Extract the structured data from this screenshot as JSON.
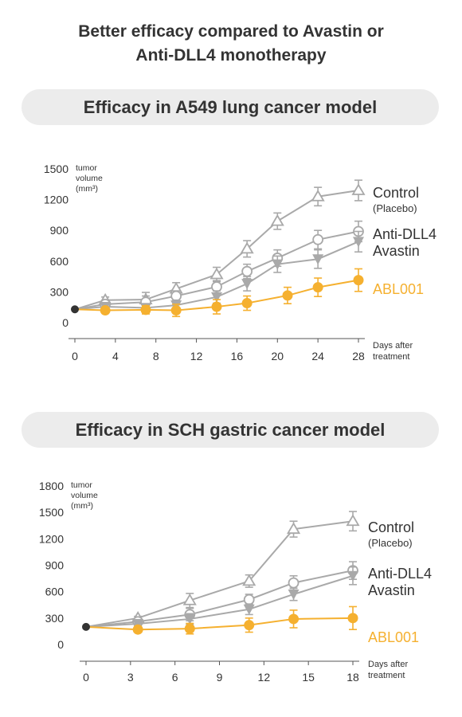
{
  "headline": {
    "line1": "Better efficacy compared to Avastin or",
    "line2": "Anti-DLL4 monotherapy"
  },
  "colors": {
    "gray": "#a9a9a9",
    "orange": "#f5b02f",
    "start": "#333333",
    "text": "#333333"
  },
  "chart_data": [
    {
      "type": "line",
      "title": "Efficacy in A549 lung cancer model",
      "ylabel_lines": [
        "tumor",
        "volume",
        "(mm³)"
      ],
      "xlabel_lines": [
        "Days after",
        "treatment"
      ],
      "yticks": [
        0,
        300,
        600,
        900,
        1200,
        1500
      ],
      "xticks": [
        0,
        4,
        8,
        12,
        16,
        20,
        24,
        28
      ],
      "xlim": [
        0,
        28
      ],
      "ylim": [
        0,
        1500
      ],
      "baseline": {
        "x": 0,
        "y": 130
      },
      "series": [
        {
          "name": "Control",
          "sublabel": "(Placebo)",
          "marker": "triangle-open",
          "color": "#a9a9a9",
          "x": [
            3,
            7,
            10,
            14,
            17,
            20,
            24,
            28
          ],
          "y": [
            220,
            225,
            330,
            470,
            720,
            990,
            1230,
            1290
          ],
          "err": [
            30,
            70,
            60,
            70,
            80,
            80,
            90,
            100
          ]
        },
        {
          "name": "Anti-DLL4",
          "marker": "circle-open",
          "color": "#a9a9a9",
          "x": [
            3,
            7,
            10,
            14,
            17,
            20,
            24,
            28
          ],
          "y": [
            180,
            200,
            260,
            350,
            500,
            630,
            810,
            890
          ],
          "err": [
            30,
            60,
            50,
            60,
            70,
            80,
            90,
            100
          ]
        },
        {
          "name": "Avastin",
          "marker": "triangle-down-filled",
          "color": "#a9a9a9",
          "x": [
            3,
            7,
            10,
            14,
            17,
            20,
            24,
            28
          ],
          "y": [
            155,
            145,
            170,
            250,
            380,
            570,
            620,
            790
          ],
          "err": [
            25,
            40,
            50,
            60,
            70,
            80,
            90,
            100
          ]
        },
        {
          "name": "ABL001",
          "marker": "circle-filled",
          "color": "#f5b02f",
          "x": [
            3,
            7,
            10,
            14,
            17,
            21,
            24,
            28
          ],
          "y": [
            120,
            125,
            120,
            155,
            190,
            265,
            345,
            415
          ],
          "err": [
            25,
            40,
            60,
            70,
            70,
            80,
            90,
            110
          ]
        }
      ]
    },
    {
      "type": "line",
      "title": "Efficacy in SCH gastric cancer model",
      "ylabel_lines": [
        "tumor",
        "volume",
        "(mm³)"
      ],
      "xlabel_lines": [
        "Days after",
        "treatment"
      ],
      "yticks": [
        0,
        300,
        600,
        900,
        1200,
        1500,
        1800
      ],
      "xticks": [
        0,
        3,
        6,
        9,
        12,
        15,
        18
      ],
      "xlim": [
        0,
        18
      ],
      "ylim": [
        0,
        1800
      ],
      "baseline": {
        "x": 0,
        "y": 200
      },
      "series": [
        {
          "name": "Control",
          "sublabel": "(Placebo)",
          "marker": "triangle-open",
          "color": "#a9a9a9",
          "x": [
            3.5,
            7,
            11,
            14,
            18
          ],
          "y": [
            300,
            500,
            720,
            1310,
            1400
          ],
          "err": [
            20,
            80,
            70,
            90,
            110
          ]
        },
        {
          "name": "Anti-DLL4",
          "marker": "circle-open",
          "color": "#a9a9a9",
          "x": [
            3.5,
            7,
            11,
            14,
            18
          ],
          "y": [
            260,
            340,
            510,
            700,
            840
          ],
          "err": [
            20,
            70,
            60,
            80,
            100
          ]
        },
        {
          "name": "Avastin",
          "marker": "triangle-down-filled",
          "color": "#a9a9a9",
          "x": [
            3.5,
            7,
            11,
            14,
            18
          ],
          "y": [
            235,
            290,
            400,
            570,
            780
          ],
          "err": [
            20,
            60,
            60,
            70,
            100
          ]
        },
        {
          "name": "ABL001",
          "marker": "circle-filled",
          "color": "#f5b02f",
          "x": [
            3.5,
            7,
            11,
            14,
            18
          ],
          "y": [
            170,
            180,
            220,
            290,
            300
          ],
          "err": [
            20,
            60,
            80,
            100,
            130
          ]
        }
      ]
    }
  ]
}
